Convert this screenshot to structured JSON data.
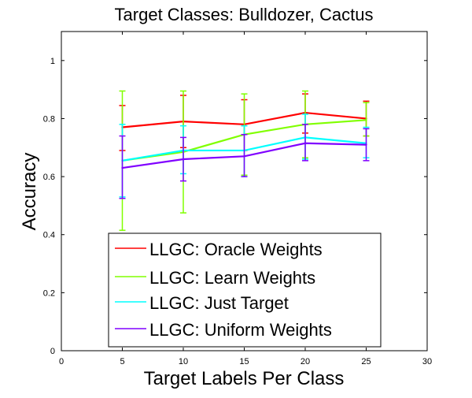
{
  "chart_data": {
    "type": "line",
    "title": "Target Classes: Bulldozer, Cactus",
    "xlabel": "Target Labels Per Class",
    "ylabel": "Accuracy",
    "xlim": [
      0,
      30
    ],
    "ylim": [
      0,
      1.1
    ],
    "xticks": [
      0,
      5,
      10,
      15,
      20,
      25,
      30
    ],
    "yticks": [
      0,
      0.2,
      0.4,
      0.6,
      0.8,
      1
    ],
    "x": [
      5,
      10,
      15,
      20,
      25
    ],
    "grid": false,
    "legend_position": "bottom-center",
    "series": [
      {
        "name": "LLGC: Oracle Weights",
        "color": "#ff0000",
        "values": [
          0.77,
          0.79,
          0.78,
          0.82,
          0.8
        ],
        "err_low": [
          0.69,
          0.7,
          0.69,
          0.75,
          0.74
        ],
        "err_high": [
          0.845,
          0.88,
          0.865,
          0.885,
          0.86
        ]
      },
      {
        "name": "LLGC: Learn Weights",
        "color": "#80ff00",
        "values": [
          0.655,
          0.685,
          0.745,
          0.78,
          0.795
        ],
        "err_low": [
          0.415,
          0.475,
          0.605,
          0.665,
          0.74
        ],
        "err_high": [
          0.895,
          0.895,
          0.885,
          0.895,
          0.855
        ]
      },
      {
        "name": "LLGC: Just Target",
        "color": "#00ffff",
        "values": [
          0.655,
          0.69,
          0.69,
          0.735,
          0.715
        ],
        "err_low": [
          0.53,
          0.61,
          0.6,
          0.66,
          0.665
        ],
        "err_high": [
          0.78,
          0.775,
          0.775,
          0.815,
          0.77
        ]
      },
      {
        "name": "LLGC: Uniform Weights",
        "color": "#8000ff",
        "values": [
          0.63,
          0.66,
          0.67,
          0.715,
          0.71
        ],
        "err_low": [
          0.525,
          0.585,
          0.6,
          0.655,
          0.655
        ],
        "err_high": [
          0.74,
          0.735,
          0.745,
          0.78,
          0.765
        ]
      }
    ]
  }
}
